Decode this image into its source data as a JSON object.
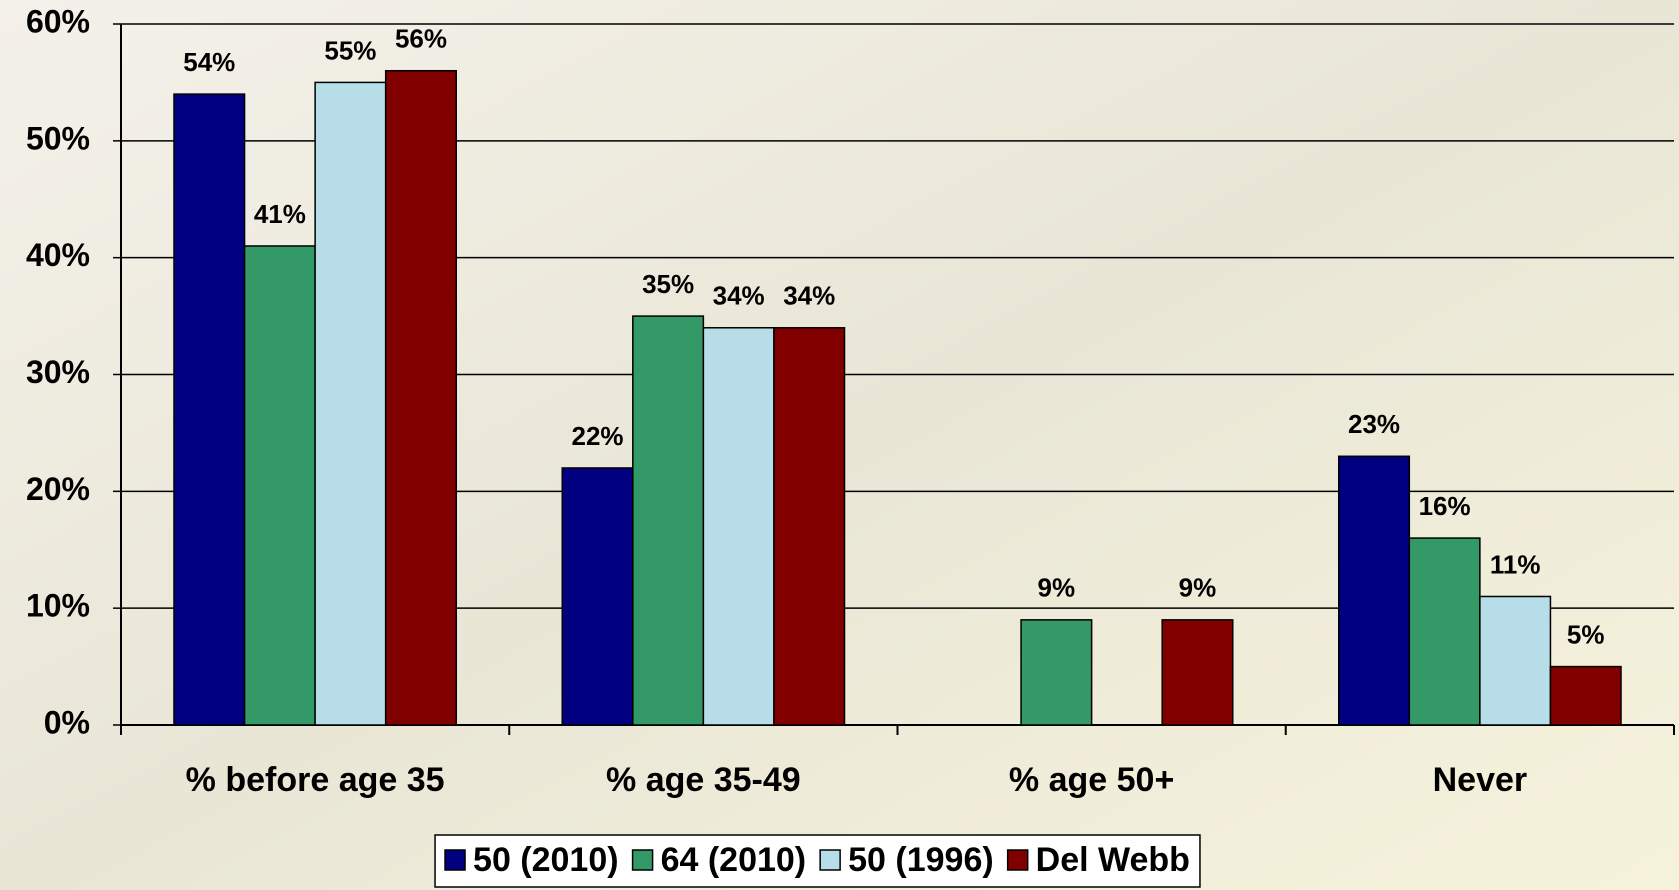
{
  "chart_data": {
    "type": "bar",
    "categories": [
      "% before age 35",
      "% age 35-49",
      "% age 50+",
      "Never"
    ],
    "series": [
      {
        "name": "50 (2010)",
        "color": "#000080",
        "values": [
          54,
          22,
          null,
          23
        ],
        "value_labels": [
          "54%",
          "22%",
          null,
          "23%"
        ]
      },
      {
        "name": "64 (2010)",
        "color": "#339966",
        "values": [
          41,
          35,
          9,
          16
        ],
        "value_labels": [
          "41%",
          "35%",
          "9%",
          "16%"
        ]
      },
      {
        "name": "50 (1996)",
        "color": "#b7dee8",
        "values": [
          55,
          34,
          null,
          11
        ],
        "value_labels": [
          "55%",
          "34%",
          null,
          "11%"
        ]
      },
      {
        "name": "Del Webb",
        "color": "#800000",
        "values": [
          56,
          34,
          9,
          5
        ],
        "value_labels": [
          "56%",
          "34%",
          "9%",
          "5%"
        ]
      }
    ],
    "ylim": [
      0,
      60
    ],
    "yticks": [
      {
        "value": 0,
        "label": "0%"
      },
      {
        "value": 10,
        "label": "10%"
      },
      {
        "value": 20,
        "label": "20%"
      },
      {
        "value": 30,
        "label": "30%"
      },
      {
        "value": 40,
        "label": "40%"
      },
      {
        "value": 50,
        "label": "50%"
      },
      {
        "value": 60,
        "label": "60%"
      }
    ],
    "grid": true,
    "legend": "bottom"
  }
}
